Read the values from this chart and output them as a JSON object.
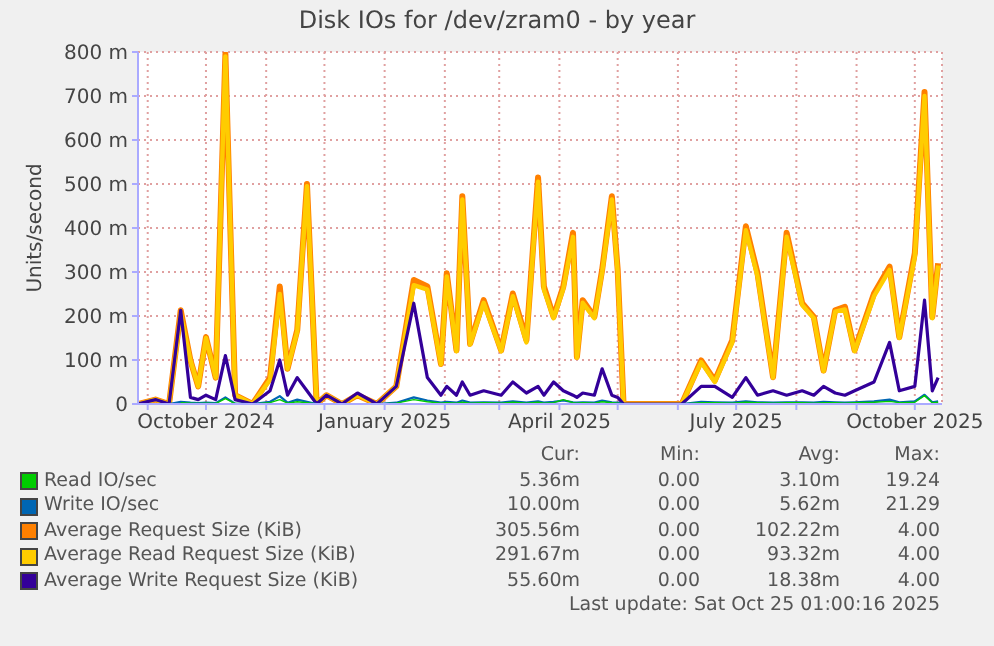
{
  "chart_data": {
    "type": "line",
    "title": "Disk IOs for /dev/zram0 - by year",
    "ylabel": "Units/second",
    "x": [
      "2024-08-27",
      "2024-09-05",
      "2024-09-12",
      "2024-09-18",
      "2024-09-23",
      "2024-09-27",
      "2024-10-01",
      "2024-10-06",
      "2024-10-11",
      "2024-10-16",
      "2024-10-25",
      "2024-11-03",
      "2024-11-08",
      "2024-11-12",
      "2024-11-17",
      "2024-11-22",
      "2024-11-27",
      "2024-12-02",
      "2024-12-10",
      "2024-12-18",
      "2024-12-28",
      "2025-01-07",
      "2025-01-16",
      "2025-01-23",
      "2025-01-30",
      "2025-02-02",
      "2025-02-07",
      "2025-02-10",
      "2025-02-14",
      "2025-02-21",
      "2025-03-02",
      "2025-03-08",
      "2025-03-15",
      "2025-03-21",
      "2025-03-24",
      "2025-03-29",
      "2025-04-03",
      "2025-04-08",
      "2025-04-10",
      "2025-04-13",
      "2025-04-19",
      "2025-04-23",
      "2025-04-28",
      "2025-05-01",
      "2025-05-04",
      "2025-06-03",
      "2025-06-13",
      "2025-06-20",
      "2025-06-29",
      "2025-07-06",
      "2025-07-12",
      "2025-07-20",
      "2025-07-27",
      "2025-08-04",
      "2025-08-10",
      "2025-08-15",
      "2025-08-21",
      "2025-08-26",
      "2025-08-31",
      "2025-09-10",
      "2025-09-18",
      "2025-09-23",
      "2025-10-01",
      "2025-10-06",
      "2025-10-10",
      "2025-10-13"
    ],
    "series": [
      {
        "name": "Read IO/sec",
        "color": "#00cc00",
        "values": [
          null,
          null,
          null,
          3,
          2,
          1,
          2,
          1,
          12,
          1,
          0,
          3,
          10,
          2,
          5,
          3,
          0,
          0,
          0,
          0,
          0,
          2,
          10,
          5,
          2,
          3,
          2,
          4,
          2,
          3,
          2,
          4,
          2,
          4,
          2,
          3,
          10,
          3,
          2,
          3,
          2,
          5,
          3,
          2,
          0,
          0,
          3,
          3,
          2,
          4,
          3,
          2,
          3,
          3,
          2,
          3,
          3,
          2,
          3,
          4,
          6,
          3,
          4,
          19,
          3,
          4
        ]
      },
      {
        "name": "Write IO/sec",
        "color": "#0066b3",
        "values": [
          0,
          0,
          0,
          5,
          3,
          2,
          3,
          2,
          15,
          1,
          0,
          5,
          18,
          3,
          10,
          5,
          0,
          0,
          0,
          0,
          0,
          3,
          15,
          8,
          3,
          5,
          3,
          8,
          3,
          4,
          3,
          6,
          3,
          6,
          3,
          5,
          8,
          4,
          3,
          4,
          3,
          8,
          4,
          3,
          0,
          0,
          5,
          4,
          3,
          6,
          4,
          3,
          4,
          4,
          3,
          5,
          4,
          3,
          4,
          6,
          10,
          4,
          6,
          21,
          4,
          6
        ]
      },
      {
        "name": "Average Request Size (KiB)",
        "color": "#ff8000",
        "values": [
          0,
          10,
          0,
          213,
          99,
          40,
          152,
          60,
          795,
          20,
          0,
          60,
          267,
          80,
          168,
          500,
          0,
          20,
          0,
          20,
          0,
          40,
          282,
          267,
          91,
          297,
          122,
          472,
          137,
          236,
          122,
          251,
          145,
          515,
          267,
          198,
          267,
          389,
          107,
          236,
          198,
          305,
          472,
          305,
          0,
          0,
          99,
          53,
          145,
          404,
          297,
          61,
          389,
          229,
          198,
          76,
          213,
          221,
          122,
          251,
          312,
          152,
          343,
          709,
          198,
          320
        ]
      },
      {
        "name": "Average Read Request Size (KiB)",
        "color": "#ffcc00",
        "values": [
          0,
          10,
          0,
          205,
          99,
          40,
          150,
          60,
          790,
          20,
          0,
          55,
          250,
          80,
          165,
          495,
          0,
          20,
          0,
          20,
          0,
          40,
          270,
          260,
          90,
          290,
          120,
          465,
          135,
          230,
          120,
          245,
          140,
          505,
          260,
          195,
          262,
          380,
          105,
          230,
          195,
          300,
          465,
          300,
          0,
          0,
          95,
          50,
          140,
          395,
          290,
          60,
          380,
          225,
          195,
          75,
          210,
          215,
          120,
          245,
          305,
          150,
          335,
          700,
          195,
          315
        ]
      },
      {
        "name": "Average Write Request Size (KiB)",
        "color": "#330099",
        "values": [
          0,
          10,
          0,
          213,
          15,
          10,
          20,
          10,
          110,
          10,
          0,
          30,
          100,
          20,
          60,
          30,
          0,
          20,
          0,
          25,
          0,
          40,
          229,
          60,
          20,
          40,
          20,
          50,
          20,
          30,
          20,
          50,
          25,
          40,
          20,
          50,
          30,
          20,
          15,
          25,
          20,
          80,
          20,
          15,
          0,
          0,
          40,
          40,
          15,
          60,
          20,
          30,
          20,
          30,
          20,
          40,
          25,
          20,
          30,
          50,
          140,
          30,
          40,
          236,
          30,
          60
        ]
      }
    ],
    "xlim": [
      "2024-08-27",
      "2025-10-15"
    ],
    "xticks": [
      {
        "value": "2024-09-01",
        "label": null
      },
      {
        "value": "2024-10-01",
        "label": "October 2024"
      },
      {
        "value": "2024-11-01",
        "label": null
      },
      {
        "value": "2024-12-01",
        "label": null
      },
      {
        "value": "2025-01-01",
        "label": "January 2025"
      },
      {
        "value": "2025-02-01",
        "label": null
      },
      {
        "value": "2025-03-01",
        "label": null
      },
      {
        "value": "2025-04-01",
        "label": "April 2025"
      },
      {
        "value": "2025-05-01",
        "label": null
      },
      {
        "value": "2025-06-01",
        "label": null
      },
      {
        "value": "2025-07-01",
        "label": "July 2025"
      },
      {
        "value": "2025-08-01",
        "label": null
      },
      {
        "value": "2025-09-01",
        "label": null
      },
      {
        "value": "2025-10-01",
        "label": "October 2025"
      }
    ],
    "ylim": [
      0,
      800
    ],
    "yticks": [
      0,
      {
        "value": 100,
        "label": "100 m"
      },
      {
        "value": 200,
        "label": "200 m"
      },
      {
        "value": 300,
        "label": "300 m"
      },
      {
        "value": 400,
        "label": "400 m"
      },
      {
        "value": 500,
        "label": "500 m"
      },
      {
        "value": 600,
        "label": "600 m"
      },
      {
        "value": 700,
        "label": "700 m"
      },
      {
        "value": 800,
        "label": "800 m"
      }
    ],
    "grid": true,
    "legend": "bottom",
    "annotations": [
      "Cur:",
      "Min:",
      "Avg:",
      "Max:",
      "5.36m",
      "0.00",
      "3.10m",
      "19.24",
      "10.00m",
      "0.00",
      "5.62m",
      "21.29",
      "305.56m",
      "0.00",
      "102.22m",
      "4.00",
      "291.67m",
      "0.00",
      "93.32m",
      "4.00",
      "55.60m",
      "0.00",
      "18.38m",
      "4.00",
      "Last update: Sat Oct 25 01:00:16 2025"
    ]
  }
}
